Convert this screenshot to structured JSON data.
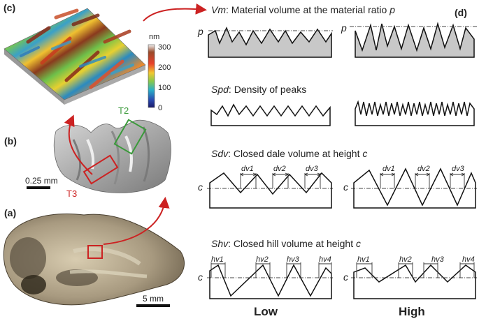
{
  "panels": {
    "c": "(c)",
    "d": "(d)",
    "b": "(b)",
    "a": "(a)"
  },
  "colorbar": {
    "unit": "nm",
    "ticks": [
      "300",
      "200",
      "100",
      "0"
    ]
  },
  "tooth_labels": {
    "t2": "T2",
    "t3": "T3",
    "scale_b": "0.25 mm",
    "scale_a": "5 mm"
  },
  "metrics": {
    "vm": {
      "symbol": "Vm",
      "desc": ": Material volume at the material ratio ",
      "param": "p"
    },
    "spd": {
      "symbol": "Spd",
      "desc": ": Density of peaks",
      "param": ""
    },
    "sdv": {
      "symbol": "Sdv",
      "desc": ": Closed dale volume at height ",
      "param": "c"
    },
    "shv": {
      "symbol": "Shv",
      "desc": ": Closed hill volume at height ",
      "param": "c"
    }
  },
  "axis_markers": {
    "p": "p",
    "c": "c"
  },
  "dale_labels": [
    "dv1",
    "dv2",
    "dv3"
  ],
  "hill_labels": [
    "hv1",
    "hv2",
    "hv3",
    "hv4"
  ],
  "columns": {
    "low": "Low",
    "high": "High"
  },
  "colors": {
    "arrow": "#cc2222",
    "t2_box": "#3a9a3a",
    "t3_box": "#cc2222",
    "fill_gray": "#c8c8c8"
  }
}
